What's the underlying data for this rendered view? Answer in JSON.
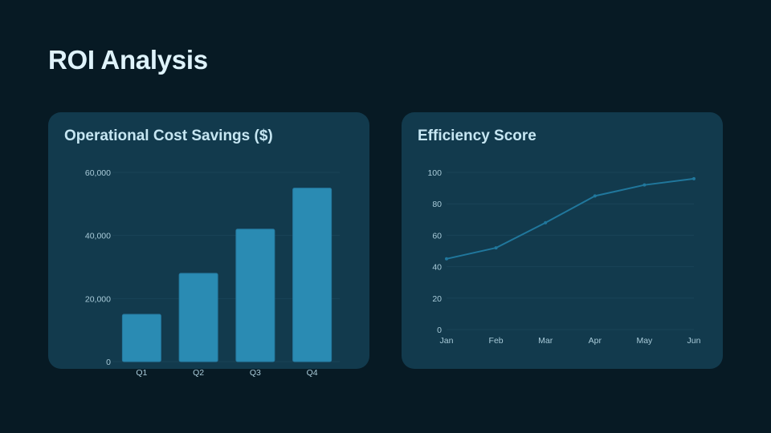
{
  "page": {
    "title": "ROI Analysis"
  },
  "cards": [
    {
      "title": "Operational Cost Savings ($)"
    },
    {
      "title": "Efficiency Score"
    }
  ],
  "colors": {
    "background": "#071a24",
    "card": "#123a4d",
    "bar": "#2a8bb3",
    "line": "#20779c",
    "text": "#dff3fb",
    "tick": "#a9cbd9"
  },
  "chart_data": [
    {
      "type": "bar",
      "title": "Operational Cost Savings ($)",
      "categories": [
        "Q1",
        "Q2",
        "Q3",
        "Q4"
      ],
      "values": [
        15000,
        28000,
        42000,
        55000
      ],
      "yticks": [
        "0",
        "20,000",
        "40,000",
        "60,000"
      ],
      "ylim": [
        0,
        60000
      ],
      "xlabel": "",
      "ylabel": "",
      "grid": true,
      "legend": false
    },
    {
      "type": "line",
      "title": "Efficiency Score",
      "categories": [
        "Jan",
        "Feb",
        "Mar",
        "Apr",
        "May",
        "Jun"
      ],
      "values": [
        45,
        52,
        68,
        85,
        92,
        96
      ],
      "yticks": [
        "0",
        "20",
        "40",
        "60",
        "80",
        "100"
      ],
      "ylim": [
        0,
        100
      ],
      "xlabel": "",
      "ylabel": "",
      "grid": true,
      "legend": false
    }
  ]
}
